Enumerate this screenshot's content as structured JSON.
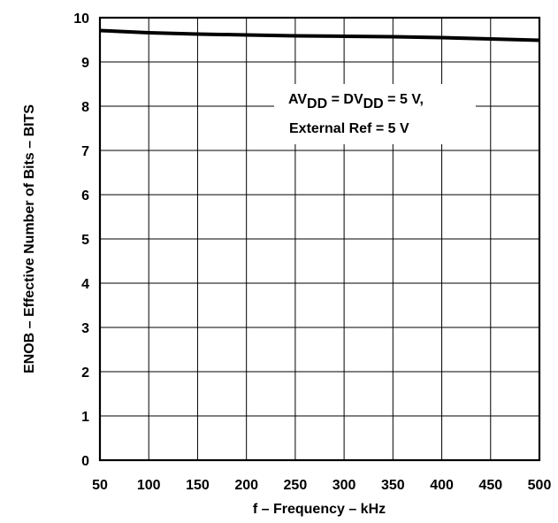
{
  "chart_data": {
    "type": "line",
    "title": "",
    "xlabel": "f – Frequency – kHz",
    "ylabel": "ENOB – Effective Number of Bits – BITS",
    "xlim": [
      50,
      500
    ],
    "ylim": [
      0,
      10
    ],
    "grid": true,
    "x_ticks": [
      "50",
      "100",
      "150",
      "200",
      "250",
      "300",
      "350",
      "400",
      "450",
      "500"
    ],
    "y_ticks": [
      "0",
      "1",
      "2",
      "3",
      "4",
      "5",
      "6",
      "7",
      "8",
      "9",
      "10"
    ],
    "annotation": {
      "line1": {
        "av": "AV",
        "dd1": "DD",
        "eq": " = DV",
        "dd2": "DD",
        "tail": " = 5 V,"
      },
      "line2": "External Ref = 5 V"
    },
    "series": [
      {
        "x": [
          50,
          100,
          150,
          200,
          250,
          300,
          350,
          400,
          450,
          500
        ],
        "y": [
          9.71,
          9.66,
          9.63,
          9.61,
          9.59,
          9.58,
          9.57,
          9.55,
          9.52,
          9.49
        ]
      }
    ],
    "colors": {
      "line": "#000000",
      "grid": "#000000",
      "background": "#ffffff"
    }
  }
}
